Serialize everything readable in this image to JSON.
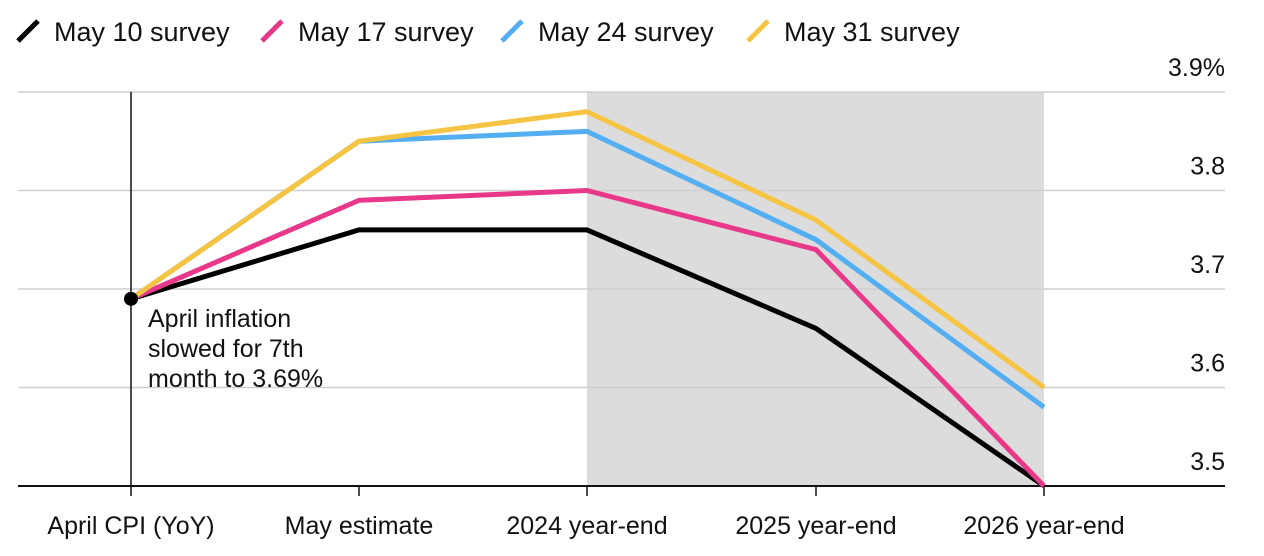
{
  "chart_data": {
    "type": "line",
    "categories": [
      "April CPI (YoY)",
      "May estimate",
      "2024 year-end",
      "2025 year-end",
      "2026 year-end"
    ],
    "series": [
      {
        "name": "May 10 survey",
        "color": "#000000",
        "values": [
          3.69,
          3.76,
          3.76,
          3.66,
          3.5
        ]
      },
      {
        "name": "May 17 survey",
        "color": "#e8388a",
        "values": [
          3.69,
          3.79,
          3.8,
          3.74,
          3.5
        ]
      },
      {
        "name": "May 24 survey",
        "color": "#54aef2",
        "values": [
          3.69,
          3.85,
          3.86,
          3.75,
          3.58
        ]
      },
      {
        "name": "May 31 survey",
        "color": "#f6c443",
        "values": [
          3.69,
          3.85,
          3.88,
          3.77,
          3.6
        ]
      }
    ],
    "ylim": [
      3.48,
      3.92
    ],
    "yticks": [
      {
        "value": 3.9,
        "label": "3.9%"
      },
      {
        "value": 3.8,
        "label": "3.8"
      },
      {
        "value": 3.7,
        "label": "3.7"
      },
      {
        "value": 3.6,
        "label": "3.6"
      },
      {
        "value": 3.5,
        "label": "3.5"
      }
    ],
    "y_axis_position": "right",
    "grid": true,
    "legend_position": "top-left",
    "shaded_region": {
      "from": "2024 year-end",
      "to": "2026 year-end",
      "color": "#dcdcdc"
    },
    "annotation": {
      "category": "April CPI (YoY)",
      "value": 3.69,
      "lines": [
        "April inflation",
        "slowed for 7th",
        "month to 3.69%"
      ]
    }
  }
}
